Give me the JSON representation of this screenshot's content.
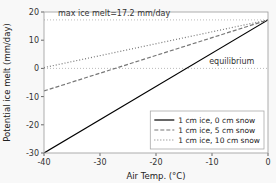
{
  "chart_data": {
    "type": "line",
    "xlabel": "Air Temp. (°C)",
    "ylabel": "Potential ice melt (mm/day)",
    "x": [
      -40,
      0
    ],
    "series": [
      {
        "name": "1 cm ice, 0 cm snow",
        "color": "#000000",
        "line_style": "solid",
        "values": [
          -30.0,
          17.2
        ]
      },
      {
        "name": "1 cm ice, 5 cm snow",
        "color": "#777777",
        "line_style": "dashed",
        "values": [
          -8.0,
          17.2
        ]
      },
      {
        "name": "1 cm ice, 10 cm snow",
        "color": "#777777",
        "line_style": "dotted",
        "values": [
          0.3,
          17.2
        ]
      }
    ],
    "hlines": [
      0.0,
      17.2
    ],
    "annotations": [
      {
        "text": "max ice melt=17.2 mm/day",
        "x": -37.5,
        "y": 18.2
      },
      {
        "text": "equilibrium",
        "x": -10.5,
        "y": 1.2
      }
    ],
    "xlim": [
      -40,
      0
    ],
    "ylim": [
      -30,
      20
    ],
    "xticks": [
      -40,
      -30,
      -20,
      -10,
      0
    ],
    "yticks": [
      -30,
      -20,
      -10,
      0,
      10,
      20
    ],
    "grid": false,
    "legend": "lower right"
  }
}
